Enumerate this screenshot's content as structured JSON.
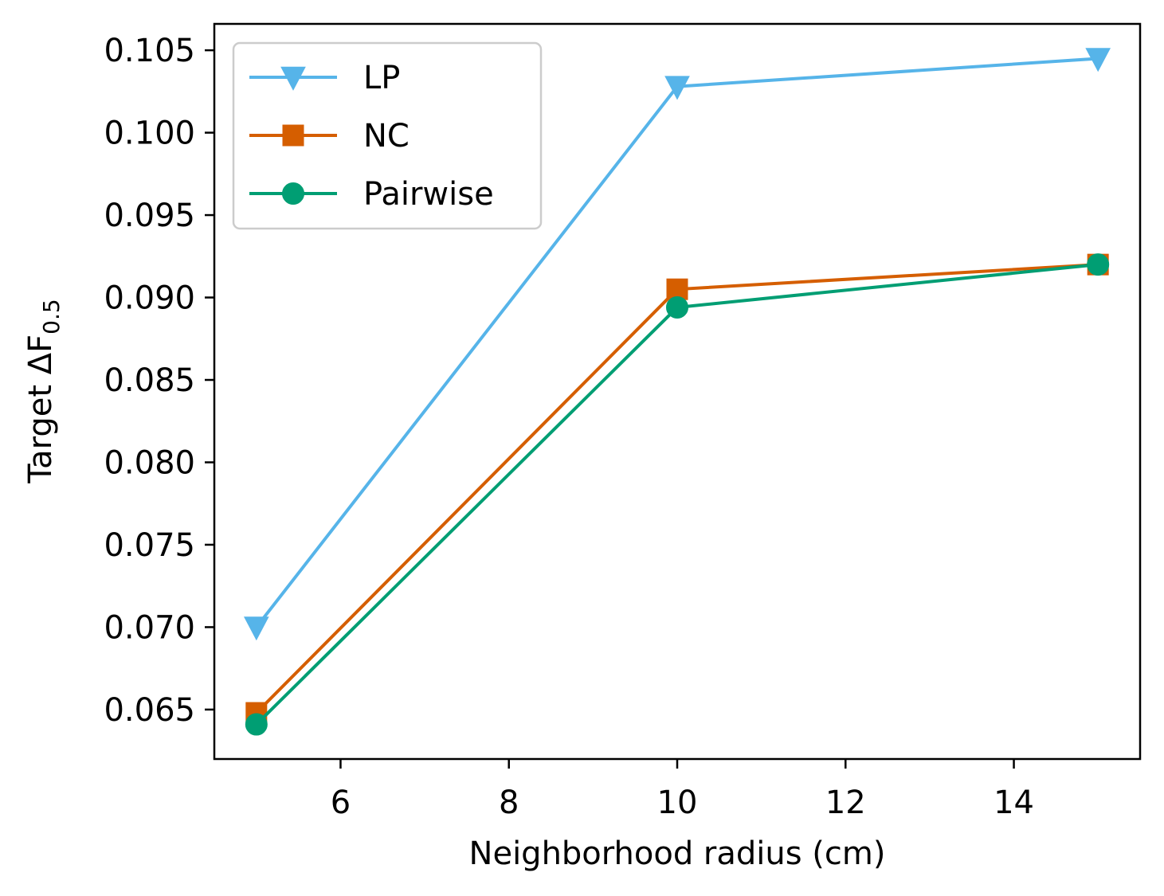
{
  "chart_data": {
    "type": "line",
    "title": "",
    "xlabel": "Neighborhood radius (cm)",
    "ylabel": {
      "main": "Target ΔF",
      "subscript": "0.5"
    },
    "xlim": [
      4.5,
      15.5
    ],
    "ylim": [
      0.062,
      0.1066
    ],
    "xticks": [
      6,
      8,
      10,
      12,
      14
    ],
    "yticks": [
      0.065,
      0.07,
      0.075,
      0.08,
      0.085,
      0.09,
      0.095,
      0.1,
      0.105
    ],
    "xtick_labels": [
      "6",
      "8",
      "10",
      "12",
      "14"
    ],
    "ytick_labels": [
      "0.065",
      "0.070",
      "0.075",
      "0.080",
      "0.085",
      "0.090",
      "0.095",
      "0.100",
      "0.105"
    ],
    "grid": false,
    "legend_position": "top-left",
    "x": [
      5,
      10,
      15
    ],
    "series": [
      {
        "name": "LP",
        "values": [
          0.07,
          0.1028,
          0.1045
        ],
        "color": "#56B4E9",
        "marker": "triangle-down"
      },
      {
        "name": "NC",
        "values": [
          0.0648,
          0.0905,
          0.092
        ],
        "color": "#D55E00",
        "marker": "square"
      },
      {
        "name": "Pairwise",
        "values": [
          0.0641,
          0.0894,
          0.092
        ],
        "color": "#009E73",
        "marker": "circle"
      }
    ]
  }
}
